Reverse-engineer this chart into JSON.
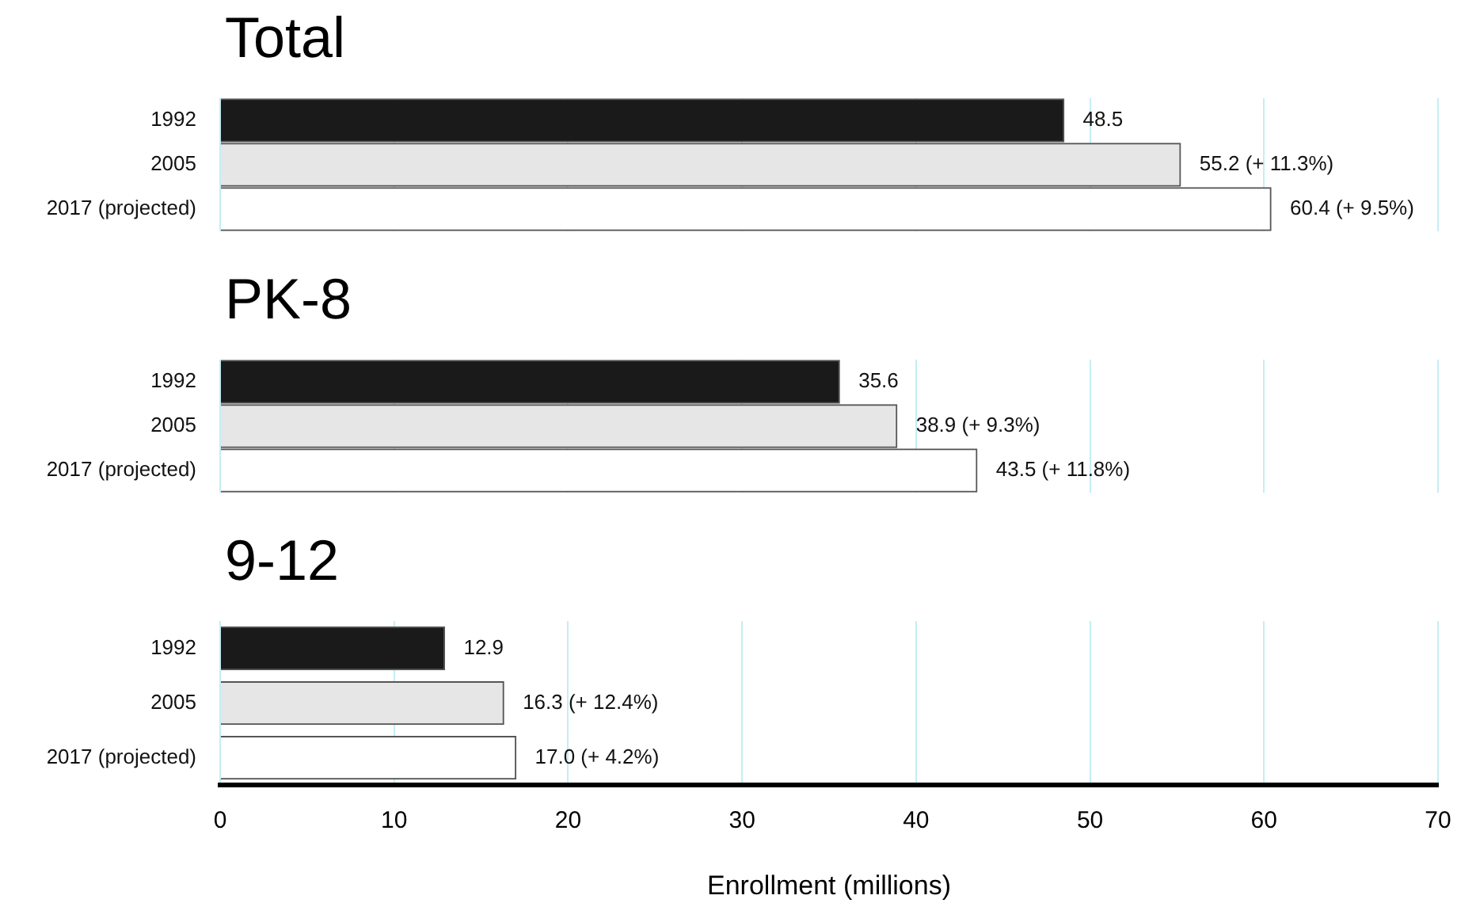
{
  "chart_data": [
    {
      "type": "bar",
      "orientation": "horizontal",
      "title": "Total",
      "categories": [
        "1992",
        "2005",
        "2017 (projected)"
      ],
      "values": [
        48.5,
        55.2,
        60.4
      ],
      "colors": [
        "#1a1a1a",
        "#e6e6e6",
        "#ffffff"
      ],
      "value_labels": [
        "48.5",
        "55.2 (+ 11.3%)",
        "60.4 (+ 9.5%)"
      ],
      "xlim": [
        0,
        70
      ],
      "xticks": [
        0,
        10,
        20,
        30,
        40,
        50,
        60,
        70
      ],
      "grid": "x",
      "tick_labels": "y"
    },
    {
      "type": "bar",
      "orientation": "horizontal",
      "title": "PK-8",
      "categories": [
        "1992",
        "2005",
        "2017 (projected)"
      ],
      "values": [
        35.6,
        38.9,
        43.5
      ],
      "colors": [
        "#1a1a1a",
        "#e6e6e6",
        "#ffffff"
      ],
      "value_labels": [
        "35.6",
        "38.9 (+ 9.3%)",
        "43.5 (+ 11.8%)"
      ],
      "xlim": [
        0,
        70
      ],
      "xticks": [
        0,
        10,
        20,
        30,
        40,
        50,
        60,
        70
      ],
      "grid": "x",
      "tick_labels": "y"
    },
    {
      "type": "bar",
      "orientation": "horizontal",
      "title": "9-12",
      "categories": [
        "1992",
        "2005",
        "2017 (projected)"
      ],
      "values": [
        12.9,
        16.3,
        17.0
      ],
      "colors": [
        "#1a1a1a",
        "#e6e6e6",
        "#ffffff"
      ],
      "value_labels": [
        "12.9",
        "16.3 (+ 12.4%)",
        "17.0 (+ 4.2%)"
      ],
      "xlim": [
        0,
        70
      ],
      "xticks": [
        0,
        10,
        20,
        30,
        40,
        50,
        60,
        70
      ],
      "grid": "x",
      "xlabel": "Enrollment (millions)"
    }
  ]
}
